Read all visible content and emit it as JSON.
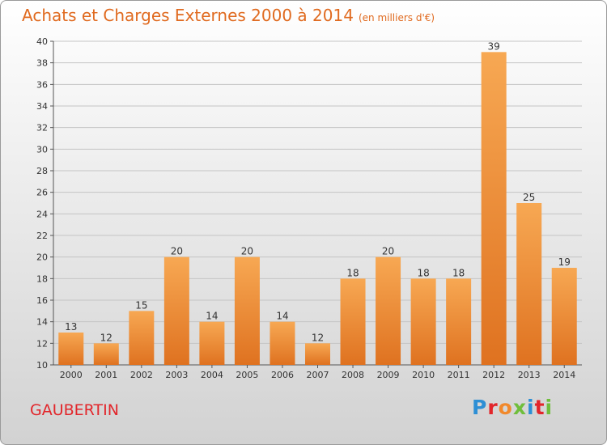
{
  "title": "Achats et Charges Externes 2000 à 2014",
  "unit": "(en milliers d'€)",
  "city": "GAUBERTIN",
  "logo": "Proxiti",
  "colors": {
    "title": "#e06a1f",
    "bar": "#f0842a",
    "city": "#e2262b"
  },
  "chart_data": {
    "type": "bar",
    "title": "Achats et Charges Externes 2000 à 2014",
    "subtitle": "(en milliers d'€)",
    "categories": [
      "2000",
      "2001",
      "2002",
      "2003",
      "2004",
      "2005",
      "2006",
      "2007",
      "2008",
      "2009",
      "2010",
      "2011",
      "2012",
      "2013",
      "2014"
    ],
    "values": [
      13,
      12,
      15,
      20,
      14,
      20,
      14,
      12,
      18,
      20,
      18,
      18,
      39,
      25,
      19
    ],
    "ylim": [
      10,
      40
    ],
    "yticks": [
      10,
      12,
      14,
      16,
      18,
      20,
      22,
      24,
      26,
      28,
      30,
      32,
      34,
      36,
      38,
      40
    ],
    "grid": true,
    "legend": "none"
  }
}
